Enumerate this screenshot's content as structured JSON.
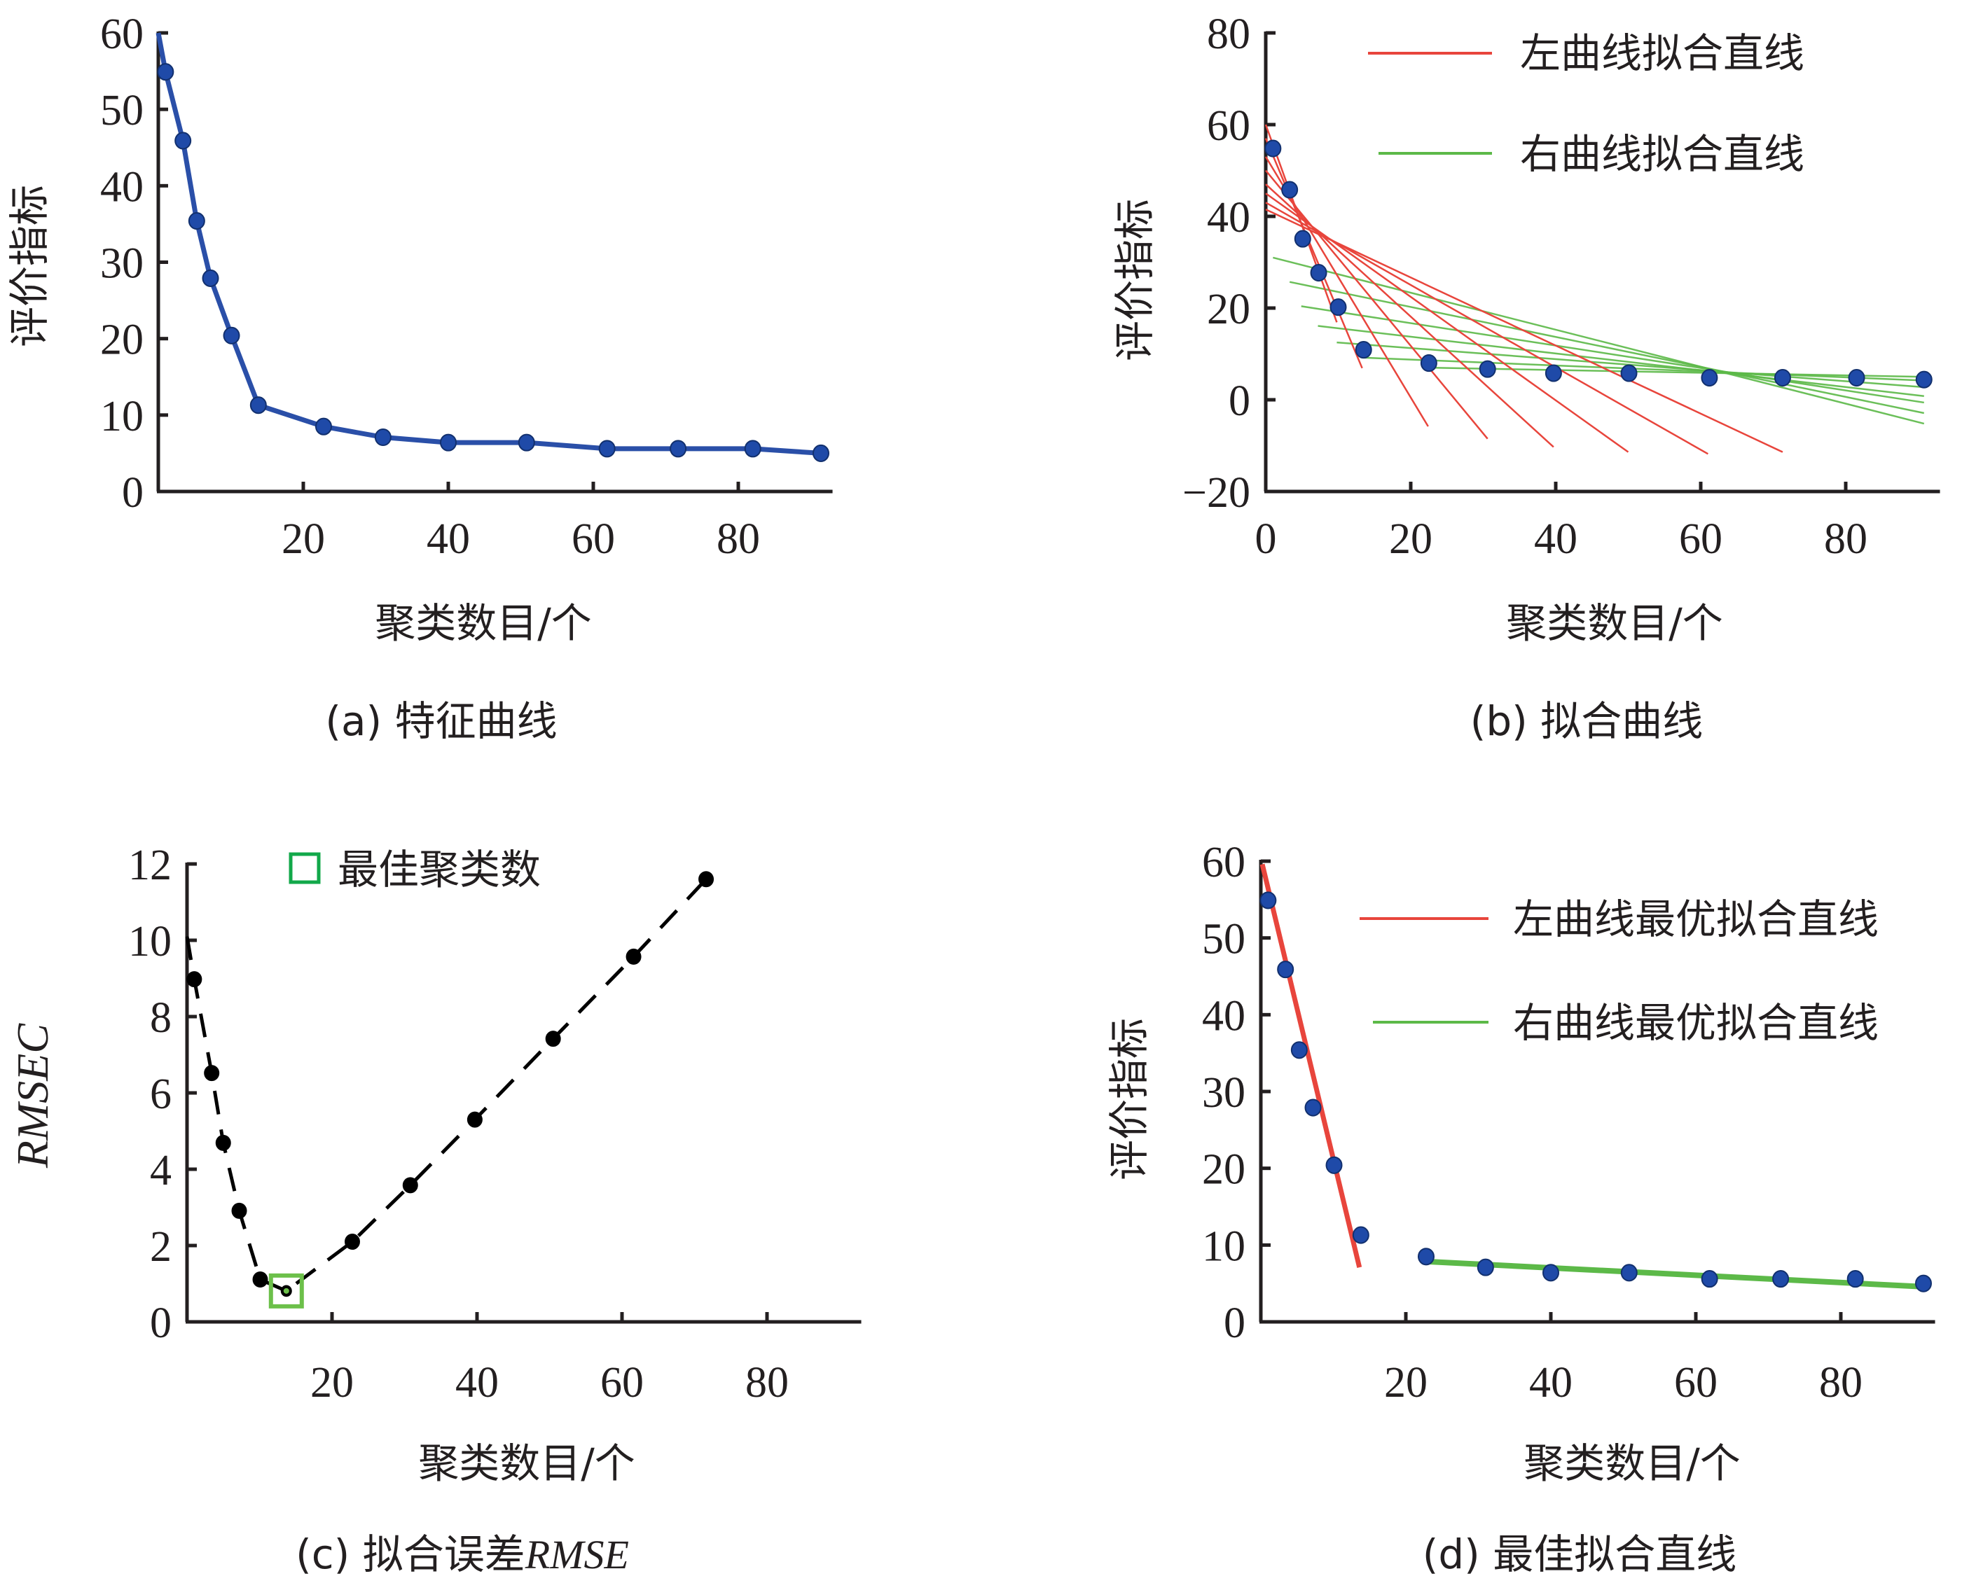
{
  "colors": {
    "axis": "#231f20",
    "blue_series": "#2a4fa8",
    "blue_marker": "#1f4aa8",
    "blue_marker_edge": "#12306e",
    "red": "#e8453c",
    "green": "#5cb948",
    "black": "#000000",
    "best_box": "#12a84a"
  },
  "chart_data": [
    {
      "id": "a",
      "type": "line",
      "caption": "(a) 特征曲线",
      "xlabel": "聚类数目/个",
      "ylabel": "评价指标",
      "xlim": [
        0,
        93
      ],
      "ylim": [
        0,
        60
      ],
      "xticks": [
        20,
        40,
        60,
        80
      ],
      "yticks": [
        0,
        10,
        20,
        30,
        40,
        50,
        60
      ],
      "xtick_labels": [
        "20",
        "40",
        "60",
        "80"
      ],
      "ytick_labels": [
        "0",
        "10",
        "20",
        "30",
        "40",
        "50",
        "60"
      ],
      "grid": false,
      "series": [
        {
          "name": "特征曲线",
          "line_start": [
            0,
            60
          ],
          "x": [
            1,
            3.4,
            5.3,
            7.2,
            10.1,
            13.8,
            22.8,
            31,
            40,
            50.8,
            61.9,
            71.7,
            82,
            91.4
          ],
          "y": [
            54.9,
            45.9,
            35.4,
            27.9,
            20.4,
            11.3,
            8.5,
            7.1,
            6.4,
            6.4,
            5.6,
            5.6,
            5.6,
            5.0
          ]
        }
      ]
    },
    {
      "id": "b",
      "type": "line",
      "caption": "(b) 拟合曲线",
      "xlabel": "聚类数目/个",
      "ylabel": "评价指标",
      "xlim": [
        0,
        93
      ],
      "ylim": [
        -20,
        80
      ],
      "xticks": [
        0,
        20,
        40,
        60,
        80
      ],
      "yticks": [
        -20,
        0,
        20,
        40,
        60,
        80
      ],
      "xtick_labels": [
        "0",
        "20",
        "40",
        "60",
        "80"
      ],
      "ytick_labels": [
        "−20",
        "0",
        "20",
        "40",
        "60",
        "80"
      ],
      "grid": false,
      "legend": {
        "position": "top-right",
        "items": [
          {
            "label": "左曲线拟合直线",
            "color": "#e8453c"
          },
          {
            "label": "右曲线拟合直线",
            "color": "#5cb948"
          }
        ]
      },
      "points": {
        "x": [
          1,
          3.3,
          5.1,
          7.3,
          10,
          13.5,
          22.5,
          30.6,
          39.7,
          50.1,
          61.2,
          71.3,
          81.5,
          90.8
        ],
        "y": [
          54.8,
          45.8,
          35.1,
          27.7,
          20.2,
          10.9,
          8.0,
          6.7,
          5.8,
          5.8,
          4.8,
          4.8,
          4.8,
          4.4
        ]
      },
      "left_fit_lines": [
        {
          "x": [
            0,
            9.8
          ],
          "y": [
            60,
            16.9
          ]
        },
        {
          "x": [
            0,
            13.3
          ],
          "y": [
            57,
            6.9
          ]
        },
        {
          "x": [
            0,
            22.4
          ],
          "y": [
            53,
            -5.8
          ]
        },
        {
          "x": [
            0,
            30.6
          ],
          "y": [
            50,
            -8.5
          ]
        },
        {
          "x": [
            0,
            39.7
          ],
          "y": [
            47,
            -10.3
          ]
        },
        {
          "x": [
            0,
            50
          ],
          "y": [
            45,
            -11.4
          ]
        },
        {
          "x": [
            0,
            61
          ],
          "y": [
            43,
            -11.8
          ]
        },
        {
          "x": [
            0,
            71.3
          ],
          "y": [
            41.5,
            -11.4
          ]
        }
      ],
      "right_fit_lines": [
        {
          "x": [
            1,
            90.8
          ],
          "y": [
            31,
            -5.2
          ]
        },
        {
          "x": [
            3.3,
            90.8
          ],
          "y": [
            25.7,
            -2.9
          ]
        },
        {
          "x": [
            4.9,
            90.8
          ],
          "y": [
            20.4,
            -0.6
          ]
        },
        {
          "x": [
            7.2,
            90.8
          ],
          "y": [
            16.1,
            0.8
          ]
        },
        {
          "x": [
            9.8,
            90.8
          ],
          "y": [
            12.5,
            2.75
          ]
        },
        {
          "x": [
            13.3,
            90.8
          ],
          "y": [
            9.2,
            4.2
          ]
        },
        {
          "x": [
            22.5,
            90.8
          ],
          "y": [
            7.0,
            5.0
          ]
        }
      ]
    },
    {
      "id": "c",
      "type": "line",
      "caption_prefix": "(c) 拟合误差",
      "caption_italic": "RMSE",
      "xlabel": "聚类数目/个",
      "ylabel": "RMSEC",
      "xlim": [
        0,
        93
      ],
      "ylim": [
        0,
        12
      ],
      "xticks": [
        20,
        40,
        60,
        80
      ],
      "yticks": [
        0,
        2,
        4,
        6,
        8,
        10,
        12
      ],
      "xtick_labels": [
        "20",
        "40",
        "60",
        "80"
      ],
      "ytick_labels": [
        "0",
        "2",
        "4",
        "6",
        "8",
        "10",
        "12"
      ],
      "grid": false,
      "legend": {
        "position": "top-left",
        "items": [
          {
            "label": "最佳聚类数",
            "color": "#12a84a",
            "marker": "square"
          }
        ]
      },
      "series": [
        {
          "name": "RMSEC",
          "style": "dashed",
          "line_start": [
            0,
            10.1
          ],
          "x": [
            1,
            3.4,
            5.0,
            7.2,
            10.1,
            13.7,
            22.8,
            30.8,
            39.7,
            50.5,
            61.6,
            71.6
          ],
          "y": [
            8.98,
            6.52,
            4.69,
            2.91,
            1.11,
            0.81,
            2.1,
            3.58,
            5.3,
            7.42,
            9.57,
            11.6
          ]
        }
      ],
      "best": {
        "x": 13.7,
        "y": 0.81
      }
    },
    {
      "id": "d",
      "type": "line",
      "caption": "(d) 最佳拟合直线",
      "xlabel": "聚类数目/个",
      "ylabel": "评价指标",
      "xlim": [
        0,
        93
      ],
      "ylim": [
        0,
        60
      ],
      "xticks": [
        20,
        40,
        60,
        80
      ],
      "yticks": [
        0,
        10,
        20,
        30,
        40,
        50,
        60
      ],
      "xtick_labels": [
        "20",
        "40",
        "60",
        "80"
      ],
      "ytick_labels": [
        "0",
        "10",
        "20",
        "30",
        "40",
        "50",
        "60"
      ],
      "grid": false,
      "legend": {
        "position": "top-right",
        "items": [
          {
            "label": "左曲线最优拟合直线",
            "color": "#e8453c"
          },
          {
            "label": "右曲线最优拟合直线",
            "color": "#5cb948"
          }
        ]
      },
      "points": {
        "x": [
          1,
          3.4,
          5.3,
          7.2,
          10.1,
          13.8,
          22.8,
          31,
          40,
          50.8,
          61.9,
          71.7,
          82,
          91.4
        ],
        "y": [
          54.9,
          45.9,
          35.4,
          27.9,
          20.4,
          11.3,
          8.5,
          7.1,
          6.4,
          6.4,
          5.6,
          5.6,
          5.6,
          5.0
        ]
      },
      "left_best_line": {
        "x": [
          0.2,
          13.6
        ],
        "y": [
          59.6,
          7.1
        ]
      },
      "right_best_line": {
        "x": [
          22.9,
          91.5
        ],
        "y": [
          7.85,
          4.57
        ]
      }
    }
  ]
}
